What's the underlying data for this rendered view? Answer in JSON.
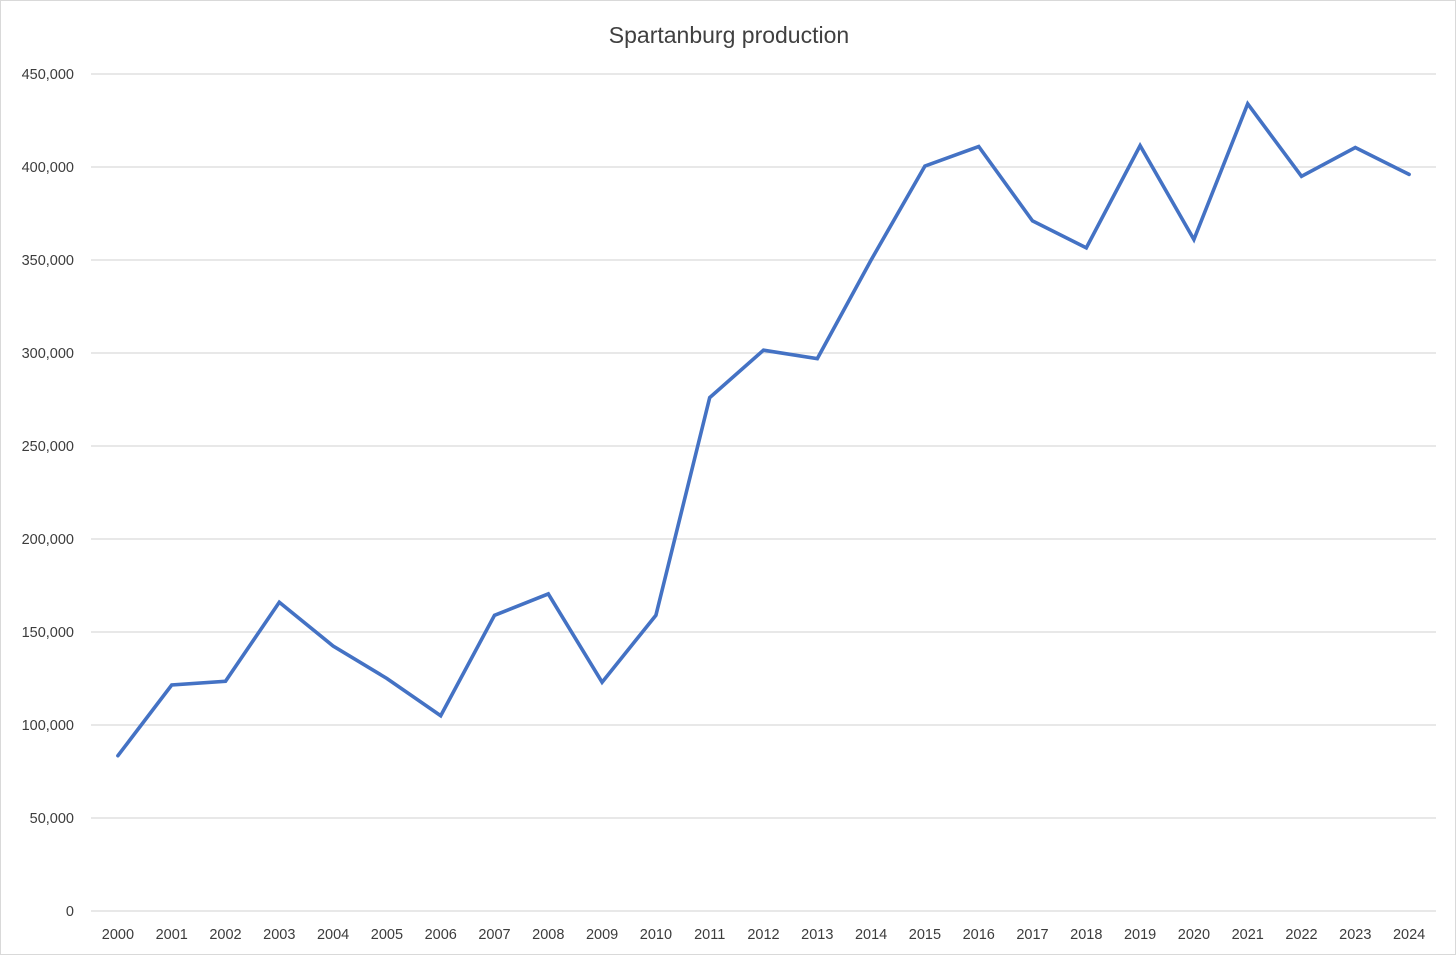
{
  "chart_data": {
    "type": "line",
    "title": "Spartanburg production",
    "xlabel": "",
    "ylabel": "",
    "categories": [
      "2000",
      "2001",
      "2002",
      "2003",
      "2004",
      "2005",
      "2006",
      "2007",
      "2008",
      "2009",
      "2010",
      "2011",
      "2012",
      "2013",
      "2014",
      "2015",
      "2016",
      "2017",
      "2018",
      "2019",
      "2020",
      "2021",
      "2022",
      "2023",
      "2024"
    ],
    "series": [
      {
        "values": [
          83500,
          121500,
          123500,
          166000,
          142500,
          125000,
          105000,
          159000,
          170500,
          123000,
          159000,
          276000,
          301500,
          297000,
          350000,
          400500,
          411000,
          371000,
          356500,
          411500,
          361000,
          434000,
          395000,
          410500,
          396000
        ]
      }
    ],
    "ylim": [
      0,
      450000
    ],
    "ytick_values": [
      0,
      50000,
      100000,
      150000,
      200000,
      250000,
      300000,
      350000,
      400000,
      450000
    ],
    "ytick_labels": [
      "0",
      "50,000",
      "100,000",
      "150,000",
      "200,000",
      "250,000",
      "300,000",
      "350,000",
      "400,000",
      "450,000"
    ],
    "grid": true,
    "legend": "none",
    "colors": {
      "line": "#4472c4",
      "grid": "#d9d9d9"
    }
  }
}
